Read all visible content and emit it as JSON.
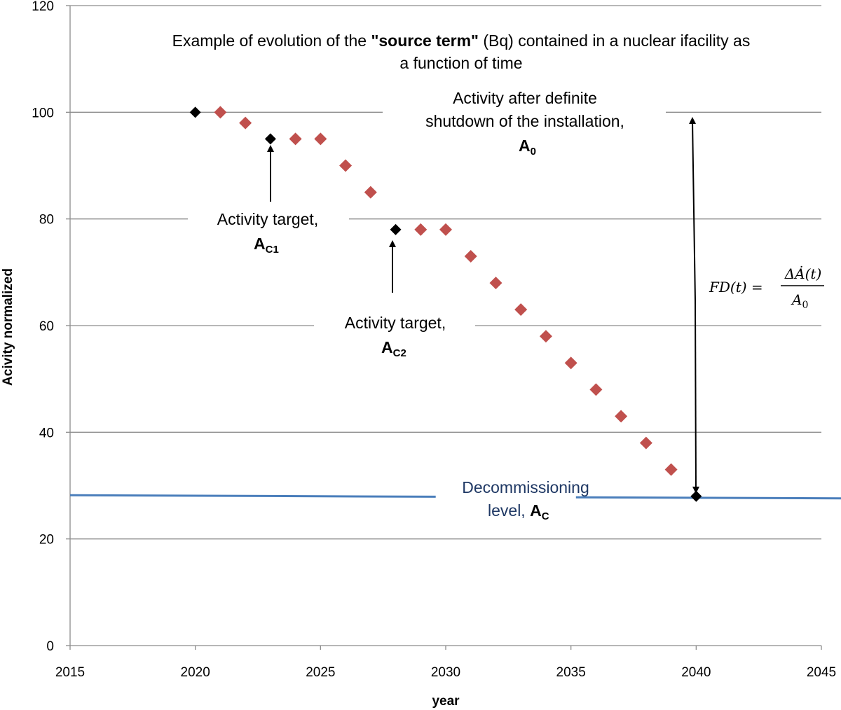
{
  "chart_data": {
    "type": "scatter",
    "title": "Example of evolution of the \"source term\" (Bq) contained in a nuclear ifacility as a function of time",
    "title_parts": {
      "line1_pre": "Example of evolution of the ",
      "line1_bold": "\"source term\"",
      "line1_post": " (Bq) contained in a nuclear  ifacility as",
      "line2": "a function of time"
    },
    "xlabel": "year",
    "ylabel": "Acivity normalized",
    "xlim": [
      2015,
      2045
    ],
    "ylim": [
      0,
      120
    ],
    "x_ticks": [
      "2015",
      "2020",
      "2025",
      "2030",
      "2035",
      "2040",
      "2045"
    ],
    "y_ticks": [
      "0",
      "20",
      "40",
      "60",
      "80",
      "100",
      "120"
    ],
    "grid": "horizontal",
    "series": [
      {
        "color": "#c0504d",
        "marker": "diamond",
        "x": [
          2021,
          2022,
          2024,
          2025,
          2026,
          2027,
          2029,
          2030,
          2031,
          2032,
          2033,
          2034,
          2035,
          2036,
          2037,
          2038,
          2039
        ],
        "y": [
          100,
          98,
          95,
          95,
          90,
          85,
          78,
          78,
          73,
          68,
          63,
          58,
          53,
          48,
          43,
          38,
          33
        ]
      },
      {
        "color": "#000000",
        "marker": "diamond",
        "x": [
          2020,
          2023,
          2028,
          2040
        ],
        "y": [
          100,
          95,
          78,
          28
        ]
      }
    ],
    "decommissioning_line": {
      "color": "#4a7ebb",
      "x": [
        2015,
        2045
      ],
      "y": [
        28.2,
        27.6
      ]
    },
    "annotations": {
      "a0": {
        "line1": "Activity after definite",
        "line2": "shutdown of the installation,",
        "symbol": "A",
        "sub": "0"
      },
      "ac1": {
        "line1": "Activity target,",
        "symbol": "A",
        "sub": "C1"
      },
      "ac2": {
        "line1": "Activity target,",
        "symbol": "A",
        "sub": "C2"
      },
      "ac": {
        "line1": "Decommissioning",
        "line2": "level, ",
        "symbol": "A",
        "sub": "C"
      },
      "formula": {
        "lhs": "FD(t) =",
        "numerator": "ΔȦ(t)",
        "denominator": "A",
        "denominator_sub": "0"
      }
    }
  }
}
